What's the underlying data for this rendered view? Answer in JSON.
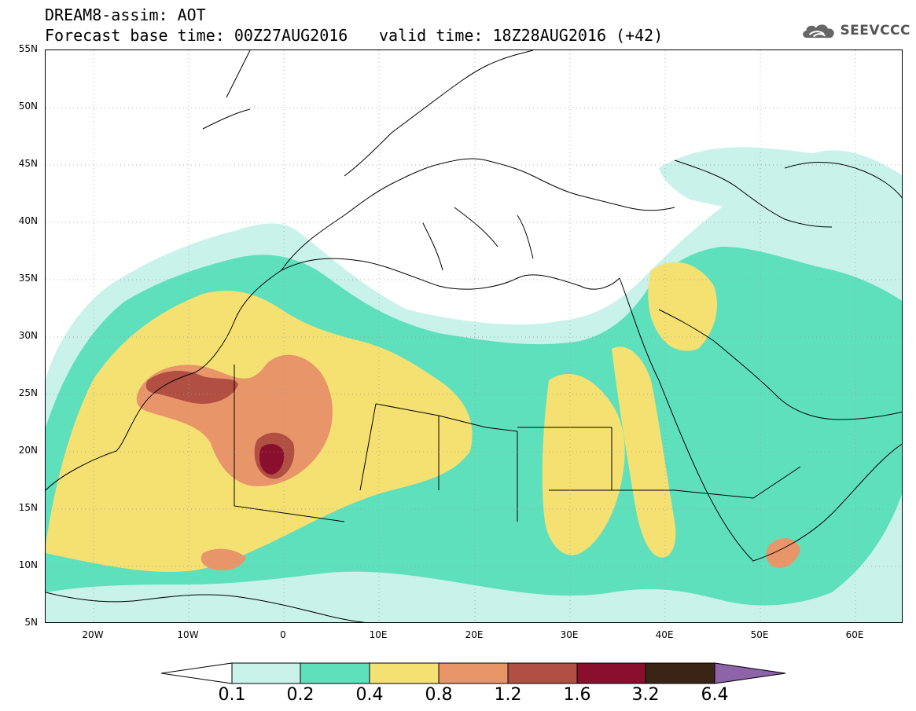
{
  "header": {
    "title": "DREAM8-assim: AOT",
    "base_time": "Forecast base time: 00Z27AUG2016",
    "valid_time": "valid time: 18Z28AUG2016 (+42)"
  },
  "logo": {
    "text": "SEEVCCC",
    "icon": "cloud-logo-icon"
  },
  "map": {
    "lat_labels": [
      "55N",
      "50N",
      "45N",
      "40N",
      "35N",
      "30N",
      "25N",
      "20N",
      "15N",
      "10N",
      "5N"
    ],
    "lon_labels": [
      "20W",
      "10W",
      "0",
      "10E",
      "20E",
      "30E",
      "40E",
      "50E",
      "60E"
    ]
  },
  "colorbar": {
    "labels": [
      "0.1",
      "0.2",
      "0.4",
      "0.8",
      "1.2",
      "1.6",
      "3.2",
      "6.4"
    ],
    "colors": [
      "#ffffff",
      "#c8f2ea",
      "#5fe0bd",
      "#f5e172",
      "#e9956a",
      "#b14f42",
      "#8a0f2f",
      "#3a2416",
      "#8e64a8"
    ]
  },
  "field_colors": {
    "c1": "#c8f2ea",
    "c2": "#5fe0bd",
    "c3": "#f5e172",
    "c4": "#e9956a",
    "c5": "#b14f42",
    "c6": "#8a0f2f"
  }
}
